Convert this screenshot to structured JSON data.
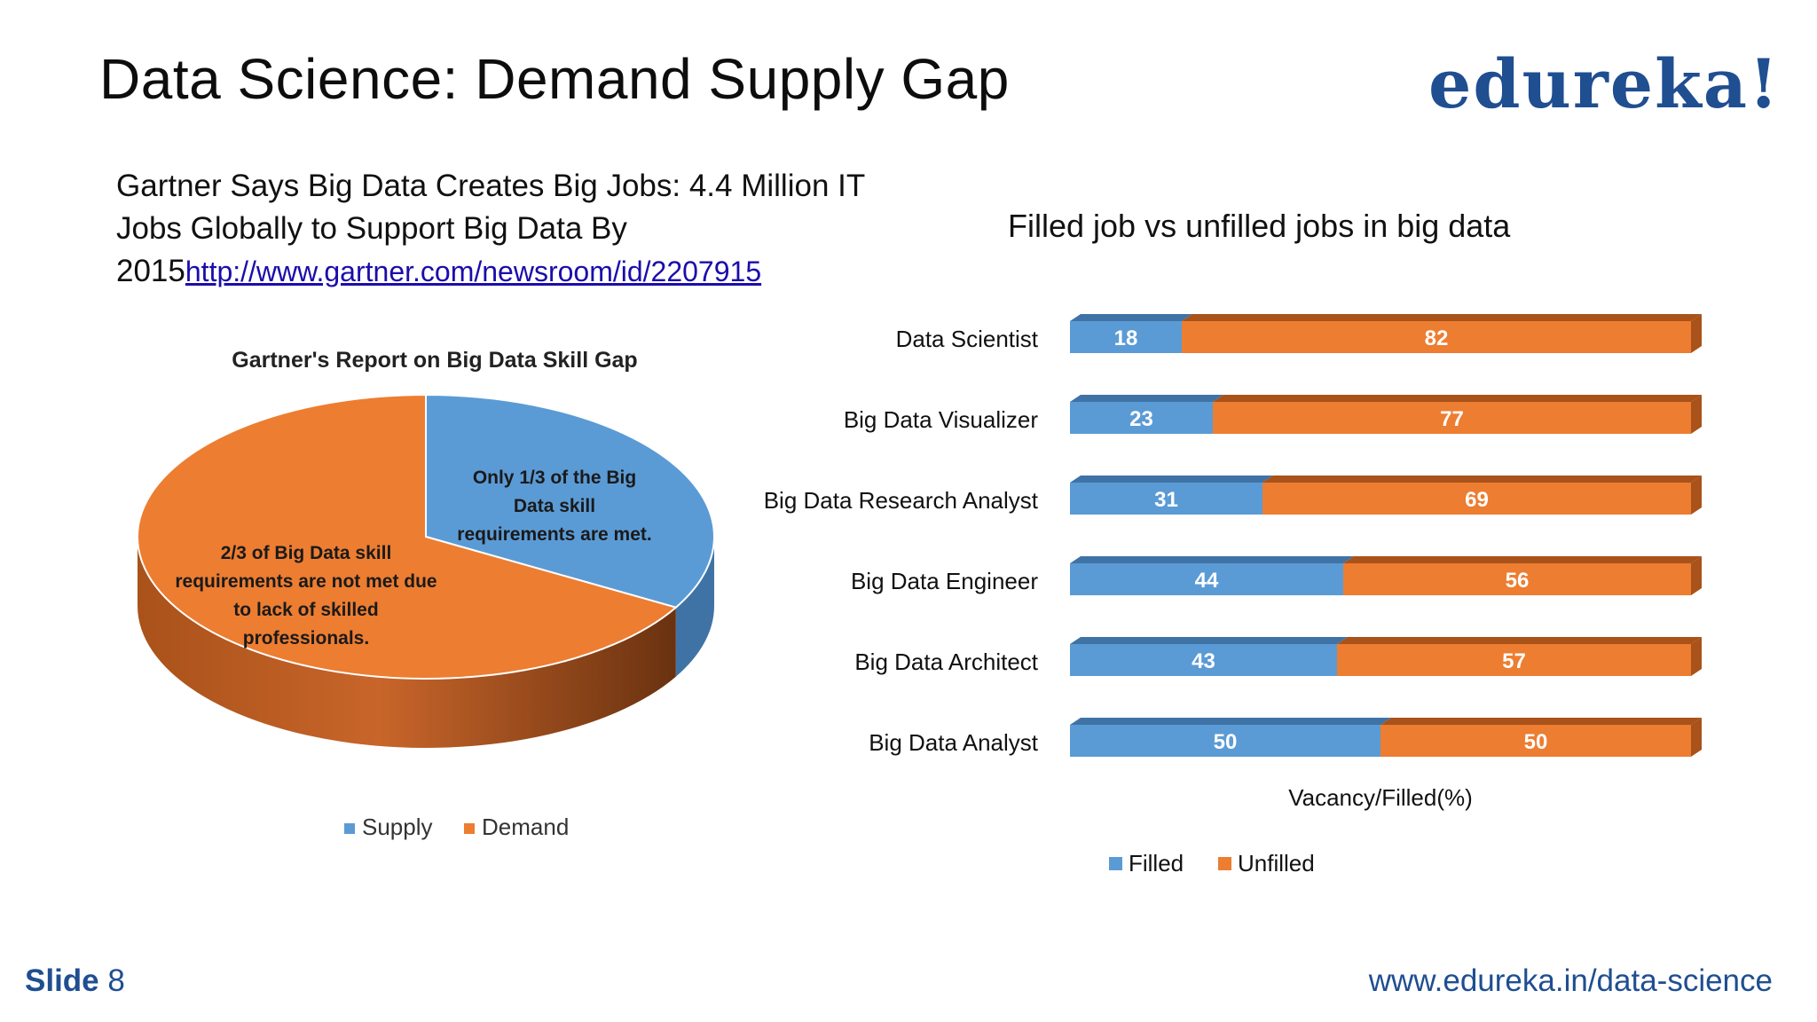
{
  "slide": {
    "title": "Data Science: Demand Supply Gap",
    "logo_text": "edureka!",
    "intro_text": "Gartner Says Big Data Creates Big Jobs: 4.4 Million IT Jobs Globally to Support Big Data By 2015",
    "intro_link": "http://www.gartner.com/newsroom/id/2207915",
    "footer_label": "Slide",
    "footer_number": "8",
    "footer_url": "www.edureka.in/data-science"
  },
  "colors": {
    "blue": "#5b9bd5",
    "blue_dark": "#3f73a6",
    "orange": "#ed7d31",
    "orange_dark": "#a9521a",
    "brand": "#1f4e91"
  },
  "chart_data": [
    {
      "type": "pie",
      "title": "Gartner's Report on Big Data Skill Gap",
      "categories": [
        "Supply",
        "Demand"
      ],
      "values": [
        33.3,
        66.7
      ],
      "annotations": [
        "Only 1/3 of the Big Data skill requirements are met.",
        "2/3 of Big Data skill requirements are not met due to lack of skilled professionals."
      ],
      "legend": "bottom",
      "style": "3d"
    },
    {
      "type": "bar",
      "orientation": "horizontal",
      "stacked": true,
      "title": "Filled job vs unfilled jobs in big data",
      "xlabel": "Vacancy/Filled(%)",
      "categories": [
        "Data Scientist",
        "Big Data Visualizer",
        "Big Data Research Analyst",
        "Big Data Engineer",
        "Big Data Architect",
        "Big Data Analyst"
      ],
      "series": [
        {
          "name": "Filled",
          "values": [
            18,
            23,
            31,
            44,
            43,
            50
          ]
        },
        {
          "name": "Unfilled",
          "values": [
            82,
            77,
            69,
            56,
            57,
            50
          ]
        }
      ],
      "xlim": [
        0,
        100
      ],
      "legend": "bottom",
      "grid": false
    }
  ]
}
